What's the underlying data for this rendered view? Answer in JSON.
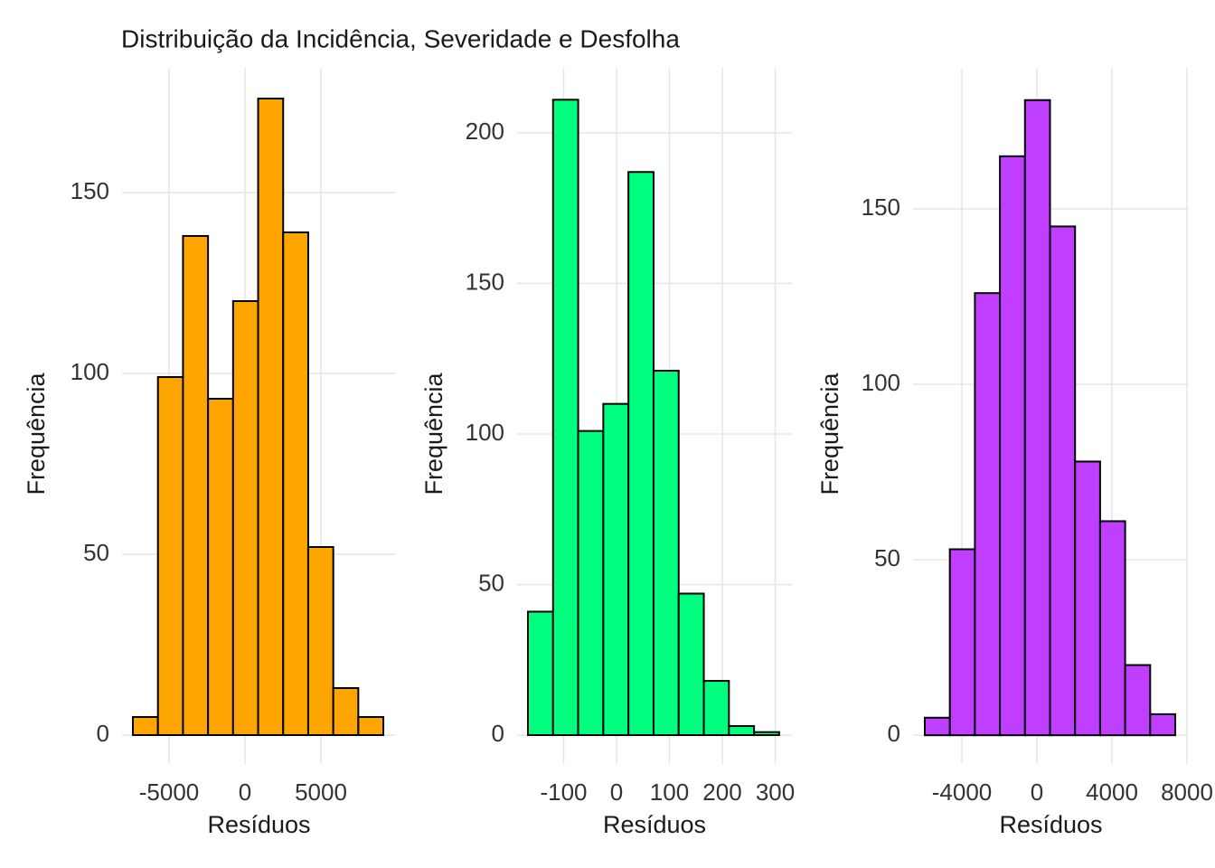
{
  "chart_data": [
    {
      "type": "histogram",
      "title": "Distribuição da Incidência, Severidade e Desfolha",
      "x_label": "Resíduos",
      "y_label": "Frequência",
      "color": "#FFA500",
      "bins": [
        -7380,
        -5731,
        -4082,
        -2433,
        -784,
        865,
        2514,
        4163,
        5812,
        7461,
        9110
      ],
      "values": [
        5,
        99,
        138,
        93,
        120,
        176,
        139,
        52,
        13,
        5
      ],
      "xlim": [
        -8095,
        9940
      ],
      "ylim": [
        -8,
        184.5
      ],
      "xticks": [
        -5000,
        0,
        5000
      ],
      "yticks": [
        0,
        50,
        100,
        150
      ],
      "grid": true
    },
    {
      "type": "histogram",
      "x_label": "Resíduos",
      "y_label": "Frequência",
      "color": "#00FF7F",
      "bins": [
        -167.5,
        -120,
        -72.5,
        -25,
        22.5,
        70,
        117.5,
        165,
        212.5,
        260,
        307.5
      ],
      "values": [
        41,
        211,
        101,
        110,
        187,
        121,
        47,
        18,
        3,
        1
      ],
      "xlim": [
        -188,
        331.6
      ],
      "ylim": [
        -9.6,
        221.6
      ],
      "xticks": [
        -100,
        0,
        100,
        200,
        300
      ],
      "yticks": [
        0,
        50,
        100,
        150,
        200
      ],
      "grid": true
    },
    {
      "type": "histogram",
      "x_label": "Resíduos",
      "y_label": "Frequência",
      "color": "#BF3EFF",
      "bins": [
        -5976,
        -4641,
        -3306,
        -1971,
        -636,
        699,
        2034,
        3369,
        4704,
        6039,
        7374
      ],
      "values": [
        5,
        53,
        126,
        165,
        181,
        145,
        78,
        61,
        20,
        6
      ],
      "xlim": [
        -6602,
        8096
      ],
      "ylim": [
        -8.2,
        190.2
      ],
      "xticks": [
        -4000,
        0,
        4000,
        8000
      ],
      "yticks": [
        0,
        50,
        100,
        150
      ],
      "grid": true
    }
  ]
}
